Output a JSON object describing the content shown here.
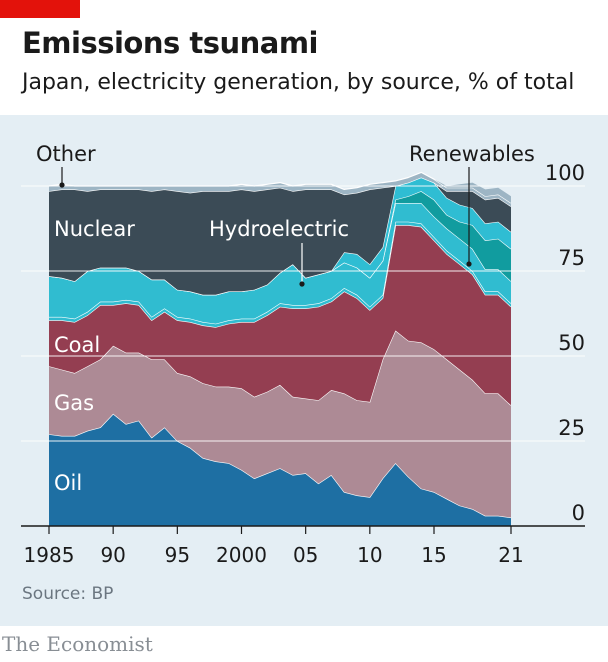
{
  "header": {
    "title": "Emissions tsunami",
    "subtitle": "Japan, electricity generation, by source, % of total"
  },
  "footer": {
    "source": "Source: BP",
    "brand": "The Economist"
  },
  "chart_data": {
    "type": "area",
    "stacked": true,
    "title": "Emissions tsunami",
    "subtitle": "Japan, electricity generation, by source, % of total",
    "xlabel": "",
    "ylabel": "",
    "x": [
      1985,
      1986,
      1987,
      1988,
      1989,
      1990,
      1991,
      1992,
      1993,
      1994,
      1995,
      1996,
      1997,
      1998,
      1999,
      2000,
      2001,
      2002,
      2003,
      2004,
      2005,
      2006,
      2007,
      2008,
      2009,
      2010,
      2011,
      2012,
      2013,
      2014,
      2015,
      2016,
      2017,
      2018,
      2019,
      2020,
      2021
    ],
    "xlim": [
      1985,
      2021
    ],
    "ylim": [
      0,
      100
    ],
    "x_tick_labels": [
      {
        "x": 1985,
        "label": "1985"
      },
      {
        "x": 1990,
        "label": "90"
      },
      {
        "x": 1995,
        "label": "95"
      },
      {
        "x": 2000,
        "label": "2000"
      },
      {
        "x": 2005,
        "label": "05"
      },
      {
        "x": 2010,
        "label": "10"
      },
      {
        "x": 2015,
        "label": "15"
      },
      {
        "x": 2021,
        "label": "21"
      }
    ],
    "y_ticks": [
      0,
      25,
      50,
      75,
      100
    ],
    "grid": true,
    "colors": {
      "background": "#e4eef4",
      "grid": "#ffffff",
      "accent_red": "#e3120b"
    },
    "series": [
      {
        "name": "Oil",
        "color": "#1e6fa3",
        "values": [
          27,
          26.5,
          26.5,
          28,
          29,
          33,
          30,
          31,
          26,
          29,
          25,
          23,
          20,
          19,
          18.5,
          16.5,
          14,
          15.5,
          17,
          15,
          15.5,
          12.5,
          15,
          10,
          9,
          8.5,
          14,
          18.5,
          14.5,
          11,
          10,
          8,
          6,
          5,
          3,
          3,
          2.5
        ]
      },
      {
        "name": "Gas",
        "color": "#ad8a95",
        "values": [
          20,
          19.5,
          18.5,
          19,
          20,
          20,
          21,
          20,
          23,
          20,
          20,
          21,
          22,
          22,
          22.5,
          24,
          24,
          24,
          24.5,
          23,
          22,
          24.5,
          25,
          29,
          28,
          28,
          35,
          39,
          40,
          43,
          42,
          41,
          40,
          38,
          36,
          36,
          33
        ]
      },
      {
        "name": "Coal",
        "color": "#943e51",
        "values": [
          13.5,
          14.5,
          15,
          15,
          16,
          12,
          14.5,
          14,
          11.5,
          14,
          15.5,
          16,
          17,
          17.5,
          18.5,
          19.5,
          22,
          22.5,
          23,
          26,
          26.5,
          27.5,
          26,
          30,
          30,
          27,
          18,
          31,
          34,
          34,
          32,
          31,
          31,
          31,
          29,
          29,
          29
        ]
      },
      {
        "name": "Hydroelectric",
        "color": "#30bcd0",
        "values": [
          1,
          1,
          1,
          1,
          1,
          1,
          1,
          1,
          1,
          1,
          1,
          1,
          1,
          1,
          1,
          1,
          1,
          1,
          1,
          1,
          1,
          1,
          1,
          1,
          1,
          1,
          1,
          1,
          1,
          1,
          1,
          1,
          1,
          1,
          1,
          1,
          1
        ]
      },
      {
        "name": "Hydroelectric",
        "color": "#30bcd0",
        "values": [
          12,
          11.5,
          11,
          12,
          10,
          10,
          9.5,
          9,
          11,
          8.5,
          8,
          8,
          8,
          8.5,
          8.5,
          8,
          8.5,
          8,
          9,
          12,
          8,
          8.5,
          8,
          7.5,
          8,
          8.5,
          10,
          5.5,
          5.5,
          6,
          6,
          6.5,
          6.5,
          6.5,
          6.5,
          6.5,
          6.5
        ]
      },
      {
        "name": "Renewables",
        "color": "#119c9f",
        "values": [
          0,
          0,
          0,
          0,
          0,
          0,
          0,
          0,
          0,
          0,
          0,
          0,
          0,
          0,
          0,
          0,
          0,
          0,
          0,
          0,
          0,
          0,
          0,
          0,
          0,
          0,
          0,
          1,
          2,
          3.5,
          5,
          4,
          5,
          7,
          8.5,
          9,
          9.5
        ]
      },
      {
        "name": "Renewables",
        "color": "#2fbdd3",
        "values": [
          0,
          0,
          0,
          0,
          0,
          0,
          0,
          0,
          0,
          0,
          0,
          0,
          0,
          0,
          0,
          0,
          0,
          0,
          0,
          0,
          0,
          0,
          0,
          3,
          4,
          4,
          4,
          4,
          4,
          4,
          5,
          5,
          5,
          5,
          5,
          5,
          5
        ]
      },
      {
        "name": "Nuclear",
        "color": "#3b4b56",
        "values": [
          25,
          26,
          27,
          23.5,
          23,
          23,
          23,
          24,
          26,
          26.5,
          29,
          29,
          30.5,
          30.5,
          29.5,
          30,
          29,
          28,
          25,
          21.5,
          26,
          25,
          24,
          17,
          18,
          22,
          17.5,
          0,
          0,
          0,
          0,
          2,
          4,
          5,
          7,
          7,
          7.5
        ]
      },
      {
        "name": "Other",
        "color": "#9db5c4",
        "values": [
          1.5,
          1.5,
          1,
          1.5,
          1,
          1,
          1,
          1,
          1.5,
          1,
          1.5,
          2,
          1.5,
          1.5,
          1.5,
          1.5,
          1.5,
          1.5,
          1.5,
          1.5,
          1.5,
          1.5,
          1.5,
          1.5,
          1.5,
          1.5,
          1.5,
          1.5,
          1.5,
          1.5,
          1,
          1,
          1,
          1,
          1,
          1,
          1
        ]
      },
      {
        "name": "Other",
        "color": "#9db5c4",
        "values": [
          0,
          0,
          0,
          0,
          0,
          0,
          0,
          0,
          0,
          0,
          0,
          0,
          0,
          0,
          0,
          0,
          0,
          0,
          0,
          0,
          0,
          0,
          0,
          0,
          0,
          0,
          0,
          0,
          0,
          0,
          0,
          0.5,
          1,
          1.5,
          2,
          2,
          2
        ]
      }
    ],
    "labels": [
      {
        "text": "Nuclear",
        "color": "#ffffff"
      },
      {
        "text": "Hydroelectric",
        "color": "#ffffff"
      },
      {
        "text": "Coal",
        "color": "#ffffff"
      },
      {
        "text": "Gas",
        "color": "#ffffff"
      },
      {
        "text": "Oil",
        "color": "#ffffff"
      },
      {
        "text": "Other",
        "color": "#1a1a1a"
      },
      {
        "text": "Renewables",
        "color": "#1a1a1a"
      }
    ]
  }
}
